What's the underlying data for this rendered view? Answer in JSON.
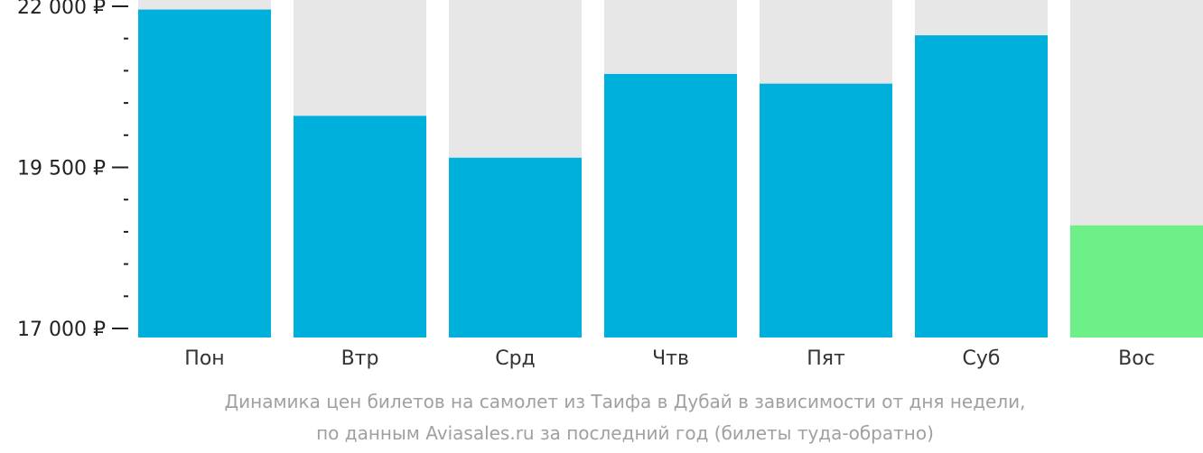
{
  "chart_data": {
    "type": "bar",
    "categories": [
      "Пон",
      "Втр",
      "Срд",
      "Чтв",
      "Пят",
      "Суб",
      "Вос"
    ],
    "values": [
      21950,
      20300,
      19650,
      20950,
      20800,
      21550,
      18600
    ],
    "ylim": [
      17000,
      22000
    ],
    "y_ticks": [
      17000,
      19500,
      22000
    ],
    "y_tick_labels": [
      "17 000 ₽",
      "19 500 ₽",
      "22 000 ₽"
    ],
    "highlight_index": 6,
    "colors": {
      "bar": "#00b0dc",
      "highlight": "#6cf087",
      "track": "#e7e7e7",
      "axis": "#222222"
    }
  },
  "caption": {
    "line1": "Динамика цен билетов на самолет из Таифа в Дубай в зависимости от дня недели,",
    "line2": "по данным Aviasales.ru за последний год (билеты туда-обратно)"
  }
}
